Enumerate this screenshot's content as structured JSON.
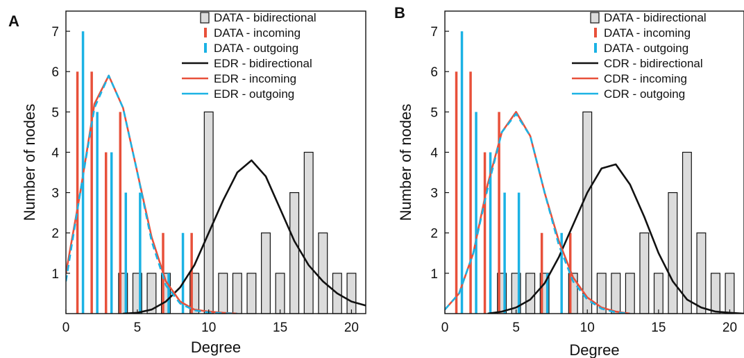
{
  "colors": {
    "bidirectional": "#111111",
    "incoming": "#e8503a",
    "outgoing": "#1bb2e4",
    "bar_fill": "#dcdcdc"
  },
  "chart_data": [
    {
      "type": "bar",
      "panel_label": "A",
      "xlabel": "Degree",
      "ylabel": "Number of nodes",
      "xlim": [
        0,
        21
      ],
      "ylim": [
        0,
        7.5
      ],
      "xticks": [
        0,
        5,
        10,
        15,
        20
      ],
      "yticks": [
        1,
        2,
        3,
        4,
        5,
        6,
        7
      ],
      "legend": [
        {
          "label": "DATA - bidirectional",
          "kind": "box",
          "color_key": "bidirectional"
        },
        {
          "label": "DATA - incoming",
          "kind": "stick",
          "color_key": "incoming"
        },
        {
          "label": "DATA - outgoing",
          "kind": "stick",
          "color_key": "outgoing"
        },
        {
          "label": "EDR - bidirectional",
          "kind": "line",
          "color_key": "bidirectional"
        },
        {
          "label": "EDR - incoming",
          "kind": "line",
          "color_key": "incoming"
        },
        {
          "label": "EDR - outgoing",
          "kind": "line",
          "color_key": "outgoing"
        }
      ],
      "bars": {
        "bidirectional": {
          "x": [
            4,
            5,
            6,
            7,
            9,
            10,
            11,
            12,
            13,
            14,
            15,
            16,
            17,
            18,
            19,
            20
          ],
          "y": [
            1,
            1,
            1,
            1,
            1,
            5,
            1,
            1,
            1,
            2,
            1,
            3,
            4,
            2,
            1,
            1
          ]
        },
        "incoming": {
          "x": [
            1,
            2,
            3,
            4,
            7,
            9
          ],
          "y": [
            6,
            6,
            4,
            5,
            2,
            2
          ]
        },
        "outgoing": {
          "x": [
            1,
            2,
            3,
            4,
            5,
            7,
            8
          ],
          "y": [
            7,
            5,
            4,
            3,
            3,
            1,
            2
          ]
        }
      },
      "curves": {
        "bidirectional": {
          "x": [
            4,
            5,
            6,
            7,
            8,
            9,
            10,
            11,
            12,
            13,
            14,
            15,
            16,
            17,
            18,
            19,
            20,
            21
          ],
          "y": [
            0,
            0.02,
            0.1,
            0.3,
            0.65,
            1.2,
            2,
            2.8,
            3.5,
            3.8,
            3.4,
            2.6,
            1.8,
            1.2,
            0.8,
            0.5,
            0.3,
            0.2
          ]
        },
        "incoming": {
          "x": [
            0,
            1,
            2,
            3,
            4,
            5,
            6,
            7,
            8,
            9,
            10,
            11,
            12
          ],
          "y": [
            1,
            3,
            5.2,
            5.9,
            5.1,
            3.5,
            1.9,
            0.8,
            0.3,
            0.1,
            0.05,
            0.02,
            0
          ]
        },
        "outgoing": {
          "x": [
            0,
            1,
            2,
            3,
            4,
            5,
            6,
            7,
            8,
            9,
            10,
            11,
            12
          ],
          "y": [
            0.8,
            3,
            5.1,
            5.9,
            5.1,
            3.5,
            1.8,
            0.7,
            0.25,
            0.08,
            0.03,
            0.01,
            0
          ]
        }
      }
    },
    {
      "type": "bar",
      "panel_label": "B",
      "xlabel": "Degree",
      "ylabel": "Number of nodes",
      "xlim": [
        0,
        21
      ],
      "ylim": [
        0,
        7.5
      ],
      "xticks": [
        0,
        5,
        10,
        15,
        20
      ],
      "yticks": [
        1,
        2,
        3,
        4,
        5,
        6,
        7
      ],
      "legend": [
        {
          "label": "DATA - bidirectional",
          "kind": "box",
          "color_key": "bidirectional"
        },
        {
          "label": "DATA - incoming",
          "kind": "stick",
          "color_key": "incoming"
        },
        {
          "label": "DATA - outgoing",
          "kind": "stick",
          "color_key": "outgoing"
        },
        {
          "label": "CDR - bidirectional",
          "kind": "line",
          "color_key": "bidirectional"
        },
        {
          "label": "CDR - incoming",
          "kind": "line",
          "color_key": "incoming"
        },
        {
          "label": "CDR - outgoing",
          "kind": "line",
          "color_key": "outgoing"
        }
      ],
      "bars": {
        "bidirectional": {
          "x": [
            4,
            5,
            6,
            7,
            9,
            10,
            11,
            12,
            13,
            14,
            15,
            16,
            17,
            18,
            19,
            20
          ],
          "y": [
            1,
            1,
            1,
            1,
            1,
            5,
            1,
            1,
            1,
            2,
            1,
            3,
            4,
            2,
            1,
            1
          ]
        },
        "incoming": {
          "x": [
            1,
            2,
            3,
            4,
            7,
            9
          ],
          "y": [
            6,
            6,
            4,
            5,
            2,
            2
          ]
        },
        "outgoing": {
          "x": [
            1,
            2,
            3,
            4,
            5,
            7,
            8
          ],
          "y": [
            7,
            5,
            4,
            3,
            3,
            1,
            2
          ]
        }
      },
      "curves": {
        "bidirectional": {
          "x": [
            3,
            4,
            5,
            6,
            7,
            8,
            9,
            10,
            11,
            12,
            13,
            14,
            15,
            16,
            17,
            18,
            19,
            20,
            21
          ],
          "y": [
            0,
            0.05,
            0.15,
            0.35,
            0.75,
            1.4,
            2.2,
            3.0,
            3.6,
            3.7,
            3.2,
            2.4,
            1.5,
            0.8,
            0.35,
            0.15,
            0.05,
            0.02,
            0
          ]
        },
        "incoming": {
          "x": [
            0,
            1,
            2,
            3,
            4,
            5,
            6,
            7,
            8,
            9,
            10,
            11,
            12,
            13
          ],
          "y": [
            0.1,
            0.5,
            1.5,
            3.2,
            4.5,
            5,
            4.4,
            3,
            1.8,
            0.9,
            0.4,
            0.15,
            0.05,
            0
          ]
        },
        "outgoing": {
          "x": [
            0,
            1,
            2,
            3,
            4,
            5,
            6,
            7,
            8,
            9,
            10,
            11,
            12,
            13
          ],
          "y": [
            0.1,
            0.5,
            1.5,
            3.1,
            4.5,
            4.95,
            4.4,
            3,
            1.7,
            0.8,
            0.35,
            0.12,
            0.03,
            0
          ]
        }
      }
    }
  ]
}
